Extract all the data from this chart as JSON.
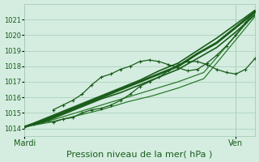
{
  "bg_color": "#d4ede0",
  "grid_color": "#a8ccb8",
  "line_color_dark": "#1a5c1a",
  "xlabel": "Pression niveau de la mer( hPa )",
  "xlabel_fontsize": 8,
  "xtick_labels": [
    "Mardi",
    "Ven"
  ],
  "ylim": [
    1013.5,
    1022.0
  ],
  "yticks": [
    1014,
    1015,
    1016,
    1017,
    1018,
    1019,
    1020,
    1021
  ],
  "ytick_fontsize": 6,
  "xtick_fontsize": 7,
  "num_points": 72,
  "xlim_hours": [
    0,
    72
  ],
  "mardi_x": 0,
  "ven_x": 66,
  "series": [
    {
      "x": [
        0,
        6,
        12,
        18,
        24,
        30,
        36,
        42,
        48,
        54,
        60,
        66,
        72
      ],
      "y": [
        1014.1,
        1014.5,
        1015.0,
        1015.5,
        1016.0,
        1016.5,
        1017.0,
        1017.5,
        1018.0,
        1018.8,
        1019.5,
        1020.5,
        1021.5
      ],
      "marker": "None",
      "color": "#1a5c1a",
      "lw": 2.0,
      "ms": 0,
      "zorder": 3
    },
    {
      "x": [
        0,
        6,
        12,
        18,
        24,
        30,
        36,
        42,
        48,
        54,
        60,
        66,
        72
      ],
      "y": [
        1014.1,
        1014.6,
        1015.1,
        1015.6,
        1016.1,
        1016.6,
        1017.1,
        1017.7,
        1018.2,
        1019.0,
        1019.8,
        1020.7,
        1021.6
      ],
      "marker": "None",
      "color": "#1a5c1a",
      "lw": 1.2,
      "ms": 0,
      "zorder": 3
    },
    {
      "x": [
        0,
        6,
        12,
        18,
        24,
        30,
        36,
        42,
        48,
        54,
        60,
        66,
        72
      ],
      "y": [
        1014.1,
        1014.4,
        1014.9,
        1015.4,
        1015.9,
        1016.3,
        1016.8,
        1017.3,
        1017.8,
        1018.5,
        1019.2,
        1020.2,
        1021.3
      ],
      "marker": "None",
      "color": "#1a5c1a",
      "lw": 1.2,
      "ms": 0,
      "zorder": 3
    },
    {
      "x": [
        0,
        8,
        16,
        24,
        32,
        40,
        48,
        56,
        64,
        72
      ],
      "y": [
        1014.1,
        1014.5,
        1015.0,
        1015.5,
        1016.0,
        1016.5,
        1017.0,
        1017.6,
        1019.5,
        1021.4
      ],
      "marker": "None",
      "color": "#2a7a2a",
      "lw": 0.9,
      "ms": 0,
      "zorder": 2
    },
    {
      "x": [
        0,
        8,
        16,
        24,
        32,
        40,
        48,
        56,
        64,
        72
      ],
      "y": [
        1014.1,
        1014.4,
        1014.8,
        1015.2,
        1015.7,
        1016.1,
        1016.6,
        1017.2,
        1019.2,
        1021.2
      ],
      "marker": "None",
      "color": "#2a7a2a",
      "lw": 0.9,
      "ms": 0,
      "zorder": 2
    },
    {
      "x": [
        0,
        3,
        6,
        9,
        12,
        15,
        18,
        21,
        24,
        27,
        30,
        33,
        36,
        39,
        42,
        45,
        48,
        51,
        54,
        57,
        60,
        63,
        66,
        69,
        72
      ],
      "y": [
        1014.1,
        1014.3,
        1014.5,
        1014.4,
        1014.6,
        1014.7,
        1015.0,
        1015.2,
        1015.3,
        1015.5,
        1015.8,
        1016.2,
        1016.7,
        1017.0,
        1017.3,
        1017.7,
        1018.1,
        1018.3,
        1018.3,
        1018.1,
        1017.8,
        1017.6,
        1017.5,
        1017.8,
        1018.5
      ],
      "marker": "+",
      "color": "#1a5c1a",
      "lw": 0.9,
      "ms": 3.5,
      "zorder": 4
    },
    {
      "x": [
        9,
        12,
        15,
        18,
        21,
        24,
        27,
        30,
        33,
        36,
        39,
        42,
        45,
        48,
        51,
        54,
        57,
        60,
        63,
        66,
        69,
        72
      ],
      "y": [
        1015.2,
        1015.5,
        1015.8,
        1016.2,
        1016.8,
        1017.3,
        1017.5,
        1017.8,
        1018.0,
        1018.3,
        1018.4,
        1018.3,
        1018.1,
        1017.9,
        1017.7,
        1017.8,
        1018.2,
        1018.7,
        1019.3,
        1020.0,
        1020.8,
        1021.5
      ],
      "marker": "+",
      "color": "#1a5c1a",
      "lw": 0.9,
      "ms": 3.5,
      "zorder": 4
    }
  ]
}
